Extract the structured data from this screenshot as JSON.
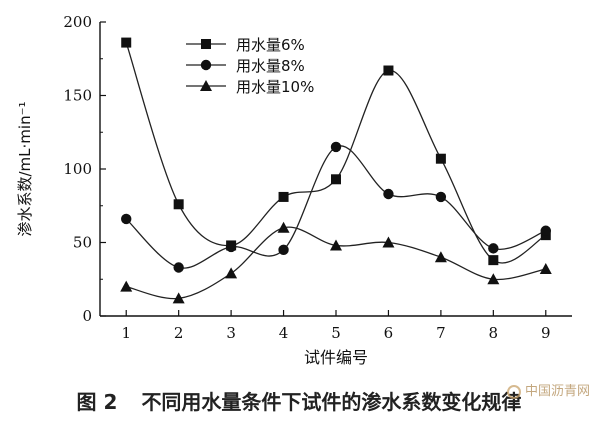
{
  "chart_data": {
    "type": "line",
    "xlabel": "试件编号",
    "ylabel": "渗水系数/mL·min⁻¹",
    "x": [
      1,
      2,
      3,
      4,
      5,
      6,
      7,
      8,
      9
    ],
    "xlim": [
      0.5,
      9.5
    ],
    "ylim": [
      0,
      200
    ],
    "yticks": [
      0,
      50,
      100,
      150,
      200
    ],
    "grid": false,
    "legend_position": "top-center",
    "series": [
      {
        "name": "用水量6%",
        "marker": "square",
        "values": [
          186,
          76,
          48,
          81,
          93,
          167,
          107,
          38,
          55
        ]
      },
      {
        "name": "用水量8%",
        "marker": "circle",
        "values": [
          66,
          33,
          47,
          45,
          115,
          83,
          81,
          46,
          58
        ]
      },
      {
        "name": "用水量10%",
        "marker": "triangle",
        "values": [
          20,
          12,
          29,
          60,
          48,
          50,
          40,
          25,
          32
        ]
      }
    ]
  },
  "caption": {
    "number": "图 2",
    "text": "不同用水量条件下试件的渗水系数变化规律"
  },
  "watermark": "中国沥青网"
}
